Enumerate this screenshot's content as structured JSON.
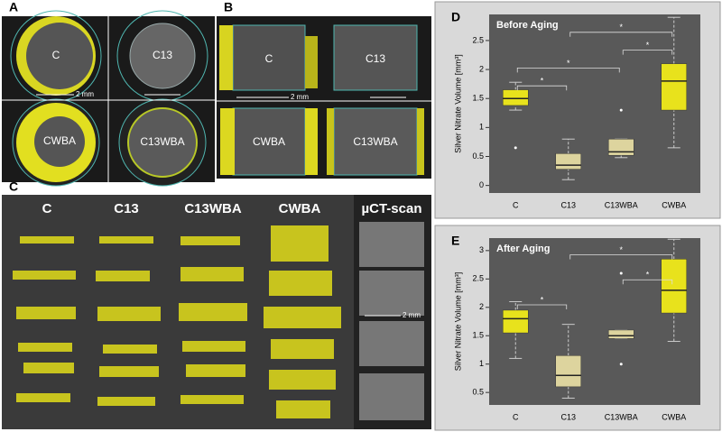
{
  "panels": {
    "A": {
      "label": "A",
      "samples": [
        "C",
        "C13",
        "CWBA",
        "C13WBA"
      ],
      "scale": "2 mm"
    },
    "B": {
      "label": "B",
      "samples": [
        "C",
        "C13",
        "CWBA",
        "C13WBA"
      ],
      "scale": "2 mm"
    },
    "C": {
      "label": "C",
      "samples": [
        "C",
        "C13",
        "C13WBA",
        "CWBA",
        "µCT-scan"
      ],
      "scale": "2 mm"
    }
  },
  "chart_data": [
    {
      "type": "box",
      "panel": "D",
      "title": "Before Aging",
      "ylabel": "Silver Nitrate Volume [mm³]",
      "categories": [
        "C",
        "C13",
        "C13WBA",
        "CWBA"
      ],
      "colors": [
        "#e8e21c",
        "#ddd49e",
        "#ddd49e",
        "#e8e21c"
      ],
      "boxes": [
        {
          "low": 1.3,
          "q1": 1.38,
          "median": 1.5,
          "q3": 1.65,
          "high": 1.78,
          "outliers": [
            0.65
          ]
        },
        {
          "low": 0.1,
          "q1": 0.28,
          "median": 0.35,
          "q3": 0.55,
          "high": 0.8,
          "outliers": []
        },
        {
          "low": 0.48,
          "q1": 0.52,
          "median": 0.58,
          "q3": 0.8,
          "high": 0.8,
          "outliers": [
            1.3
          ]
        },
        {
          "low": 0.65,
          "q1": 1.3,
          "median": 1.8,
          "q3": 2.1,
          "high": 2.9,
          "outliers": []
        }
      ],
      "significance": [
        {
          "label": "*",
          "pair": [
            "C",
            "C13"
          ]
        },
        {
          "label": "*",
          "pair": [
            "C",
            "C13WBA"
          ]
        },
        {
          "label": "*",
          "pair": [
            "C13WBA",
            "CWBA"
          ]
        },
        {
          "label": "*",
          "pair": [
            "C13",
            "CWBA"
          ]
        }
      ],
      "ylim": [
        -0.13,
        2.95
      ],
      "yticks": [
        0,
        0.5,
        1,
        1.5,
        2,
        2.5
      ]
    },
    {
      "type": "box",
      "panel": "E",
      "title": "After Aging",
      "ylabel": "Silver Nitrate Volume [mm³]",
      "categories": [
        "C",
        "C13",
        "C13WBA",
        "CWBA"
      ],
      "colors": [
        "#e8e21c",
        "#ddd49e",
        "#ddd49e",
        "#e8e21c"
      ],
      "boxes": [
        {
          "low": 1.1,
          "q1": 1.55,
          "median": 1.8,
          "q3": 1.95,
          "high": 2.1,
          "outliers": []
        },
        {
          "low": 0.4,
          "q1": 0.6,
          "median": 0.8,
          "q3": 1.15,
          "high": 1.7,
          "outliers": []
        },
        {
          "low": 1.45,
          "q1": 1.45,
          "median": 1.5,
          "q3": 1.6,
          "high": 1.6,
          "outliers": [
            2.6,
            1.0
          ]
        },
        {
          "low": 1.4,
          "q1": 1.9,
          "median": 2.3,
          "q3": 2.85,
          "high": 3.2,
          "outliers": []
        }
      ],
      "significance": [
        {
          "label": "*",
          "pair": [
            "C",
            "C13"
          ]
        },
        {
          "label": "*",
          "pair": [
            "C13WBA",
            "CWBA"
          ]
        },
        {
          "label": "*",
          "pair": [
            "C13",
            "CWBA"
          ]
        }
      ],
      "ylim": [
        0.28,
        3.22
      ],
      "yticks": [
        0.5,
        1,
        1.5,
        2,
        2.5,
        3
      ]
    }
  ]
}
